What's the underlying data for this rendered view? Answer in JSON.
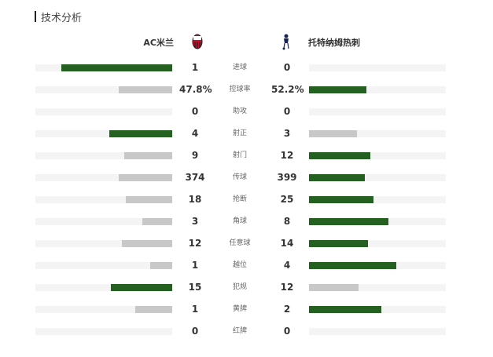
{
  "header": {
    "title": "技术分析"
  },
  "teams": {
    "home": "AC米兰",
    "away": "托特纳姆热刺"
  },
  "colors": {
    "leading": "#246120",
    "trailing": "#c8c8c8",
    "track": "#f4f4f4"
  },
  "stats": [
    {
      "label": "进球",
      "home": "1",
      "away": "0",
      "home_share": 0.81,
      "away_share": 0.0,
      "home_lead": true,
      "away_lead": false
    },
    {
      "label": "控球率",
      "home": "47.8%",
      "away": "52.2%",
      "home_share": 0.39,
      "away_share": 0.42,
      "home_lead": false,
      "away_lead": true
    },
    {
      "label": "助攻",
      "home": "0",
      "away": "0",
      "home_share": 0.0,
      "away_share": 0.0,
      "home_lead": false,
      "away_lead": false
    },
    {
      "label": "射正",
      "home": "4",
      "away": "3",
      "home_share": 0.46,
      "away_share": 0.35,
      "home_lead": true,
      "away_lead": false
    },
    {
      "label": "射门",
      "home": "9",
      "away": "12",
      "home_share": 0.35,
      "away_share": 0.45,
      "home_lead": false,
      "away_lead": true
    },
    {
      "label": "传球",
      "home": "374",
      "away": "399",
      "home_share": 0.39,
      "away_share": 0.41,
      "home_lead": false,
      "away_lead": true
    },
    {
      "label": "抢断",
      "home": "18",
      "away": "25",
      "home_share": 0.34,
      "away_share": 0.47,
      "home_lead": false,
      "away_lead": true
    },
    {
      "label": "角球",
      "home": "3",
      "away": "8",
      "home_share": 0.22,
      "away_share": 0.58,
      "home_lead": false,
      "away_lead": true
    },
    {
      "label": "任意球",
      "home": "12",
      "away": "14",
      "home_share": 0.37,
      "away_share": 0.43,
      "home_lead": false,
      "away_lead": true
    },
    {
      "label": "越位",
      "home": "1",
      "away": "4",
      "home_share": 0.16,
      "away_share": 0.64,
      "home_lead": false,
      "away_lead": true
    },
    {
      "label": "犯规",
      "home": "15",
      "away": "12",
      "home_share": 0.45,
      "away_share": 0.36,
      "home_lead": true,
      "away_lead": false
    },
    {
      "label": "黄牌",
      "home": "1",
      "away": "2",
      "home_share": 0.27,
      "away_share": 0.53,
      "home_lead": false,
      "away_lead": true
    },
    {
      "label": "红牌",
      "home": "0",
      "away": "0",
      "home_share": 0.0,
      "away_share": 0.0,
      "home_lead": false,
      "away_lead": false
    }
  ]
}
